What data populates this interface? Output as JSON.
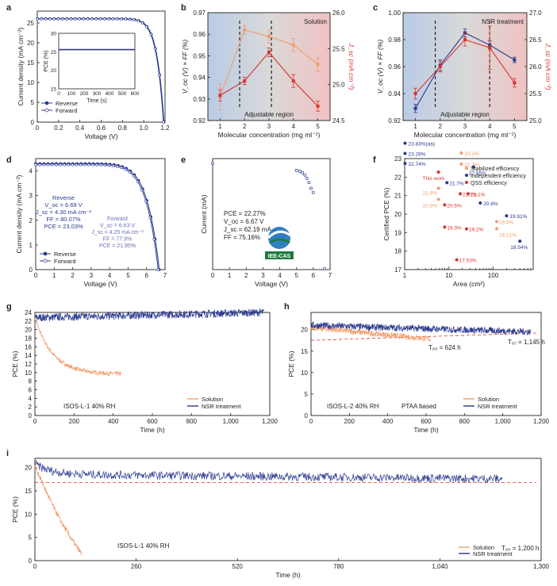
{
  "colors": {
    "navy": "#2b3990",
    "orange": "#f29c6b",
    "red": "#d9342b",
    "blue_bg": "#b9cbe6",
    "red_bg": "#f1c2c2",
    "axis": "#222222",
    "gray_band": "#d9d9d9",
    "green": "#1e7a3c"
  },
  "chart_data": [
    {
      "panel": "a",
      "type": "line",
      "xlabel": "Voltage (V)",
      "ylabel": "Current density (mA cm⁻²)",
      "xlim": [
        0,
        1.2
      ],
      "ylim": [
        0,
        28
      ],
      "xticks": [
        0,
        0.2,
        0.4,
        0.6,
        0.8,
        1.0,
        1.2
      ],
      "xtick_labels": [
        "0",
        "0.2",
        "0.4",
        "0.6",
        "0.8",
        "1.0",
        "1.2"
      ],
      "yticks": [
        0,
        5,
        10,
        15,
        20,
        25
      ],
      "legend": [
        "Reverse",
        "Forward"
      ],
      "series": [
        {
          "name": "Reverse",
          "jsc": 26.1,
          "voc": 1.19
        },
        {
          "name": "Forward",
          "jsc": 26.0,
          "voc": 1.185
        }
      ],
      "inset": {
        "xlabel": "Time (s)",
        "ylabel": "PCE (%)",
        "xlim": [
          0,
          600
        ],
        "ylim": [
          15,
          30
        ],
        "xticks": [
          0,
          100,
          200,
          300,
          400,
          500,
          600
        ],
        "yticks": [
          15,
          20,
          25,
          30
        ],
        "value": 25.6
      }
    },
    {
      "panel": "b",
      "type": "line",
      "xlabel": "Molecular concentration (mg ml⁻¹)",
      "ylabel_left": "V_oc (V) × FF (%)",
      "ylabel_right": "J_sc (mA cm⁻²)",
      "x": [
        1,
        2,
        3,
        4,
        5
      ],
      "ylim_left": [
        0.92,
        0.97
      ],
      "ylim_right": [
        24.5,
        26.0
      ],
      "yticks_left": [
        "0.92",
        "0.93",
        "0.94",
        "0.95",
        "0.96",
        "0.97"
      ],
      "yticks_right": [
        "24.5",
        "25.0",
        "25.5",
        "26.0"
      ],
      "series": [
        {
          "name": "Voc x FF",
          "axis": "left",
          "values": [
            0.931,
            0.962,
            0.959,
            0.955,
            0.946
          ],
          "err": [
            0.006,
            0.002,
            0.003,
            0.003,
            0.003
          ]
        },
        {
          "name": "Jsc",
          "axis": "right",
          "values": [
            24.85,
            25.05,
            25.45,
            25.05,
            24.7
          ],
          "err": [
            0.08,
            0.05,
            0.06,
            0.09,
            0.07
          ]
        }
      ],
      "annotation": "Solution",
      "region_label": "Adjustable region"
    },
    {
      "panel": "c",
      "type": "line",
      "xlabel": "Molecular concentration (mg ml⁻¹)",
      "ylabel_left": "V_oc (V) × FF (%)",
      "ylabel_right": "J_sc (mA cm⁻²)",
      "x": [
        1,
        2,
        3,
        4,
        5
      ],
      "ylim_left": [
        0.92,
        1.0
      ],
      "ylim_right": [
        25.0,
        27.0
      ],
      "yticks_left": [
        "0.92",
        "0.94",
        "0.96",
        "0.98",
        "1.00"
      ],
      "yticks_right": [
        "25.0",
        "25.5",
        "26.0",
        "26.5",
        "27.0"
      ],
      "series": [
        {
          "name": "Voc x FF",
          "axis": "left",
          "values": [
            0.929,
            0.961,
            0.985,
            0.976,
            0.965
          ],
          "err": [
            0.003,
            0.004,
            0.003,
            0.003,
            0.002
          ]
        },
        {
          "name": "Jsc",
          "axis": "right",
          "values": [
            25.5,
            26.0,
            26.5,
            26.35,
            25.7
          ],
          "err": [
            0.1,
            0.1,
            0.12,
            0.4,
            0.08
          ]
        }
      ],
      "annotation": "NSR treatment",
      "region_label": "Adjustable region"
    },
    {
      "panel": "d",
      "type": "line",
      "xlabel": "Voltage (V)",
      "ylabel": "Current density (mA cm⁻²)",
      "xlim": [
        0,
        7
      ],
      "ylim": [
        0,
        4.5
      ],
      "xticks": [
        0,
        1,
        2,
        3,
        4,
        5,
        6,
        7
      ],
      "yticks": [
        0,
        1,
        2,
        3,
        4
      ],
      "legend": [
        "Reverse",
        "Forward"
      ],
      "series": [
        {
          "name": "Reverse",
          "jsc": 4.3,
          "voc": 6.69
        },
        {
          "name": "Forward",
          "jsc": 4.25,
          "voc": 6.63
        }
      ],
      "labels": {
        "reverse": [
          "Reverse",
          "V_oc = 6.69 V",
          "J_sc = 4.30 mA cm⁻²",
          "FF = 80.07%",
          "PCE = 23.03%"
        ],
        "forward": [
          "Forward",
          "V_oc = 6.63 V",
          "J_sc = 4.25 mA cm⁻²",
          "FF = 77.9%",
          "PCE = 21.95%"
        ]
      }
    },
    {
      "panel": "e",
      "type": "scatter",
      "xlabel": "Voltage (V)",
      "ylabel": "Current (mA)",
      "xlim": [
        0,
        7
      ],
      "ylim": [
        0,
        65
      ],
      "xticks": [
        0,
        1,
        2,
        3,
        4,
        5,
        6,
        7
      ],
      "points": [
        [
          0,
          62.2
        ],
        [
          5.0,
          58.1
        ],
        [
          5.2,
          57.6
        ],
        [
          5.35,
          56.8
        ],
        [
          5.5,
          55.4
        ],
        [
          5.62,
          53.5
        ],
        [
          5.74,
          51.0
        ],
        [
          5.86,
          47.6
        ],
        [
          6.0,
          45.2
        ],
        [
          6.67,
          0.5
        ]
      ],
      "labels": [
        "PCE = 22.27%",
        "V_oc = 6.67 V",
        "J_sc = 62.19 mA",
        "FF = 75.16%"
      ],
      "logo_text": "IEE-CAS"
    },
    {
      "panel": "f",
      "type": "scatter",
      "xlabel": "Area (cm²)",
      "ylabel": "Certified PCE (%)",
      "xscale": "log",
      "xlim": [
        1,
        800
      ],
      "ylim": [
        17,
        23
      ],
      "yticks": [
        17,
        18,
        19,
        20,
        21,
        22,
        23
      ],
      "xtick_labels": [
        "1",
        "10",
        "100"
      ],
      "legend": [
        "Stabilized efficiency",
        "Independent efficiency",
        "QSS efficiency"
      ],
      "points": [
        {
          "area": 1.02,
          "pce": 23.83,
          "label": "23.83%(aa)",
          "kind": "independent"
        },
        {
          "area": 1.02,
          "pce": 23.28,
          "label": "23.28%",
          "kind": "independent"
        },
        {
          "area": 1.02,
          "pce": 22.74,
          "label": "22.74%",
          "kind": "independent"
        },
        {
          "area": 19.0,
          "pce": 23.3,
          "label": "23.3%",
          "kind": "stabilized"
        },
        {
          "area": 19.0,
          "pce": 22.7,
          "label": "22.7%",
          "kind": "stabilized"
        },
        {
          "area": 36.0,
          "pce": 22.55,
          "label": "22.55%",
          "kind": "independent"
        },
        {
          "area": 5.8,
          "pce": 22.27,
          "label": "This work",
          "kind": "this"
        },
        {
          "area": 9.0,
          "pce": 21.7,
          "label": "21.7%",
          "kind": "independent"
        },
        {
          "area": 5.8,
          "pce": 21.4,
          "label": "21.4%",
          "kind": "stabilized"
        },
        {
          "area": 5.8,
          "pce": 20.8,
          "label": "20.8%",
          "kind": "stabilized"
        },
        {
          "area": 18.0,
          "pce": 21.1,
          "label": "21.1%",
          "kind": "qss"
        },
        {
          "area": 18.0,
          "pce": 21.1,
          "label": "21.1%",
          "kind": "qss"
        },
        {
          "area": 51.0,
          "pce": 20.6,
          "label": "20.6%",
          "kind": "independent"
        },
        {
          "area": 200.0,
          "pce": 19.91,
          "label": "19.91%",
          "kind": "independent"
        },
        {
          "area": 8.0,
          "pce": 20.5,
          "label": "20.5%",
          "kind": "qss"
        },
        {
          "area": 8.0,
          "pce": 19.3,
          "label": "19.3%",
          "kind": "qss"
        },
        {
          "area": 25.0,
          "pce": 19.2,
          "label": "19.2%",
          "kind": "qss"
        },
        {
          "area": 120.0,
          "pce": 19.6,
          "label": "19.6%",
          "kind": "stabilized"
        },
        {
          "area": 120.0,
          "pce": 19.21,
          "label": "19.21%",
          "kind": "stabilized"
        },
        {
          "area": 400.0,
          "pce": 18.54,
          "label": "18.54%",
          "kind": "independent"
        },
        {
          "area": 15.0,
          "pce": 17.53,
          "label": "17.53%",
          "kind": "qss"
        }
      ]
    },
    {
      "panel": "g",
      "type": "line",
      "xlabel": "Time (h)",
      "ylabel": "PCE (%)",
      "xlim": [
        0,
        1200
      ],
      "ylim": [
        0,
        24
      ],
      "xticks": [
        0,
        200,
        400,
        600,
        800,
        1000,
        1200
      ],
      "xtick_labels": [
        "0",
        "200",
        "400",
        "600",
        "800",
        "1,000",
        "1,200"
      ],
      "yticks": [
        0,
        2,
        4,
        6,
        8,
        10,
        12,
        14,
        16,
        18,
        20,
        22,
        24
      ],
      "legend": [
        "Solution",
        "NSR treatment"
      ],
      "annotation": "ISOS-L-1 40% RH",
      "series": [
        {
          "name": "Solution",
          "t_end": 440,
          "start": 22.8,
          "end": 9.6
        },
        {
          "name": "NSR treatment",
          "t_end": 1170,
          "start": 22.8,
          "end": 24.0
        }
      ]
    },
    {
      "panel": "h",
      "type": "line",
      "xlabel": "Time (h)",
      "ylabel": "PCE (%)",
      "xlim": [
        0,
        1200
      ],
      "ylim": [
        0,
        24
      ],
      "xticks": [
        0,
        200,
        400,
        600,
        800,
        1000,
        1200
      ],
      "xtick_labels": [
        "0",
        "200",
        "400",
        "600",
        "800",
        "1,000",
        "1,200"
      ],
      "yticks": [
        0,
        5,
        10,
        15,
        20
      ],
      "legend": [
        "Solution",
        "NSR treatment"
      ],
      "annotation": "ISOS-L-2 40% RH",
      "annotation2": "PTAA based",
      "series": [
        {
          "name": "Solution",
          "t_end": 624,
          "start": 20.5,
          "end": 17.8
        },
        {
          "name": "NSR treatment",
          "t_end": 1145,
          "start": 21.0,
          "end": 19.5
        }
      ],
      "markers": [
        {
          "label": "T₈₀ = 624 h",
          "t": 624,
          "pce": 16.8
        },
        {
          "label": "T₈₇ = 1,145 h",
          "t": 1145,
          "pce": 19.0
        }
      ]
    },
    {
      "panel": "i",
      "type": "line",
      "xlabel": "Time (h)",
      "ylabel": "PCE (%)",
      "xlim": [
        0,
        1300
      ],
      "ylim": [
        0,
        22
      ],
      "xticks": [
        0,
        260,
        520,
        780,
        1040,
        1300
      ],
      "xtick_labels": [
        "0",
        "260",
        "520",
        "780",
        "1,040",
        "1,300"
      ],
      "yticks": [
        0,
        5,
        10,
        15,
        20
      ],
      "legend": [
        "Solution",
        "NSR treatment"
      ],
      "annotation": "ISOS-L-1 40% RH",
      "series": [
        {
          "name": "Solution",
          "t_end": 120,
          "start": 20.5,
          "end": 1.5
        },
        {
          "name": "NSR treatment",
          "t_end": 1200,
          "start": 20.8,
          "end": 17.5
        }
      ],
      "markers": [
        {
          "label": "T₈₀ = 1,200 h",
          "t": 1200,
          "pce": 16.8
        }
      ]
    }
  ],
  "panel_letters": [
    "a",
    "b",
    "c",
    "d",
    "e",
    "f",
    "g",
    "h",
    "i"
  ]
}
